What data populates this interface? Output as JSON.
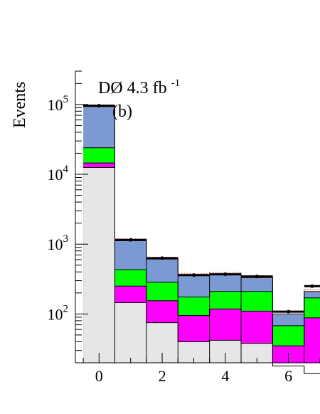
{
  "chart_data": {
    "type": "bar",
    "subtype": "stacked-histogram",
    "ylabel": "Events",
    "yscale": "log",
    "xlim": [
      -0.75,
      7.0
    ],
    "ylim": [
      20,
      300000
    ],
    "annotation_main": "DØ 4.3 fb",
    "annotation_sup": "-1",
    "annotation_panel": "(b)",
    "x_ticks": [
      0,
      2,
      4,
      6
    ],
    "x_tick_labels": [
      "0",
      "2",
      "4",
      "6"
    ],
    "y_ticks": [
      {
        "base": "10",
        "exp": "2",
        "value": 100
      },
      {
        "base": "10",
        "exp": "3",
        "value": 1000
      },
      {
        "base": "10",
        "exp": "4",
        "value": 10000
      },
      {
        "base": "10",
        "exp": "5",
        "value": 100000
      }
    ],
    "bin_edges": [
      -0.5,
      0.5,
      1.5,
      2.5,
      3.5,
      4.5,
      5.5,
      6.5,
      7.0
    ],
    "series": [
      {
        "color": "#e6e6e6",
        "values": [
          12500,
          145,
          75,
          40,
          42,
          38,
          18,
          14
        ]
      },
      {
        "color": "#ff00ff",
        "values": [
          14500,
          250,
          155,
          95,
          118,
          110,
          35,
          88
        ]
      },
      {
        "color": "#00ff00",
        "values": [
          24000,
          430,
          285,
          175,
          210,
          210,
          68,
          170
        ]
      },
      {
        "color": "#7b9ad3",
        "values": [
          93000,
          1120,
          610,
          355,
          370,
          330,
          100,
          210
        ]
      }
    ],
    "data_points": [
      96000,
      1150,
      630,
      360,
      370,
      345,
      108,
      250
    ]
  }
}
